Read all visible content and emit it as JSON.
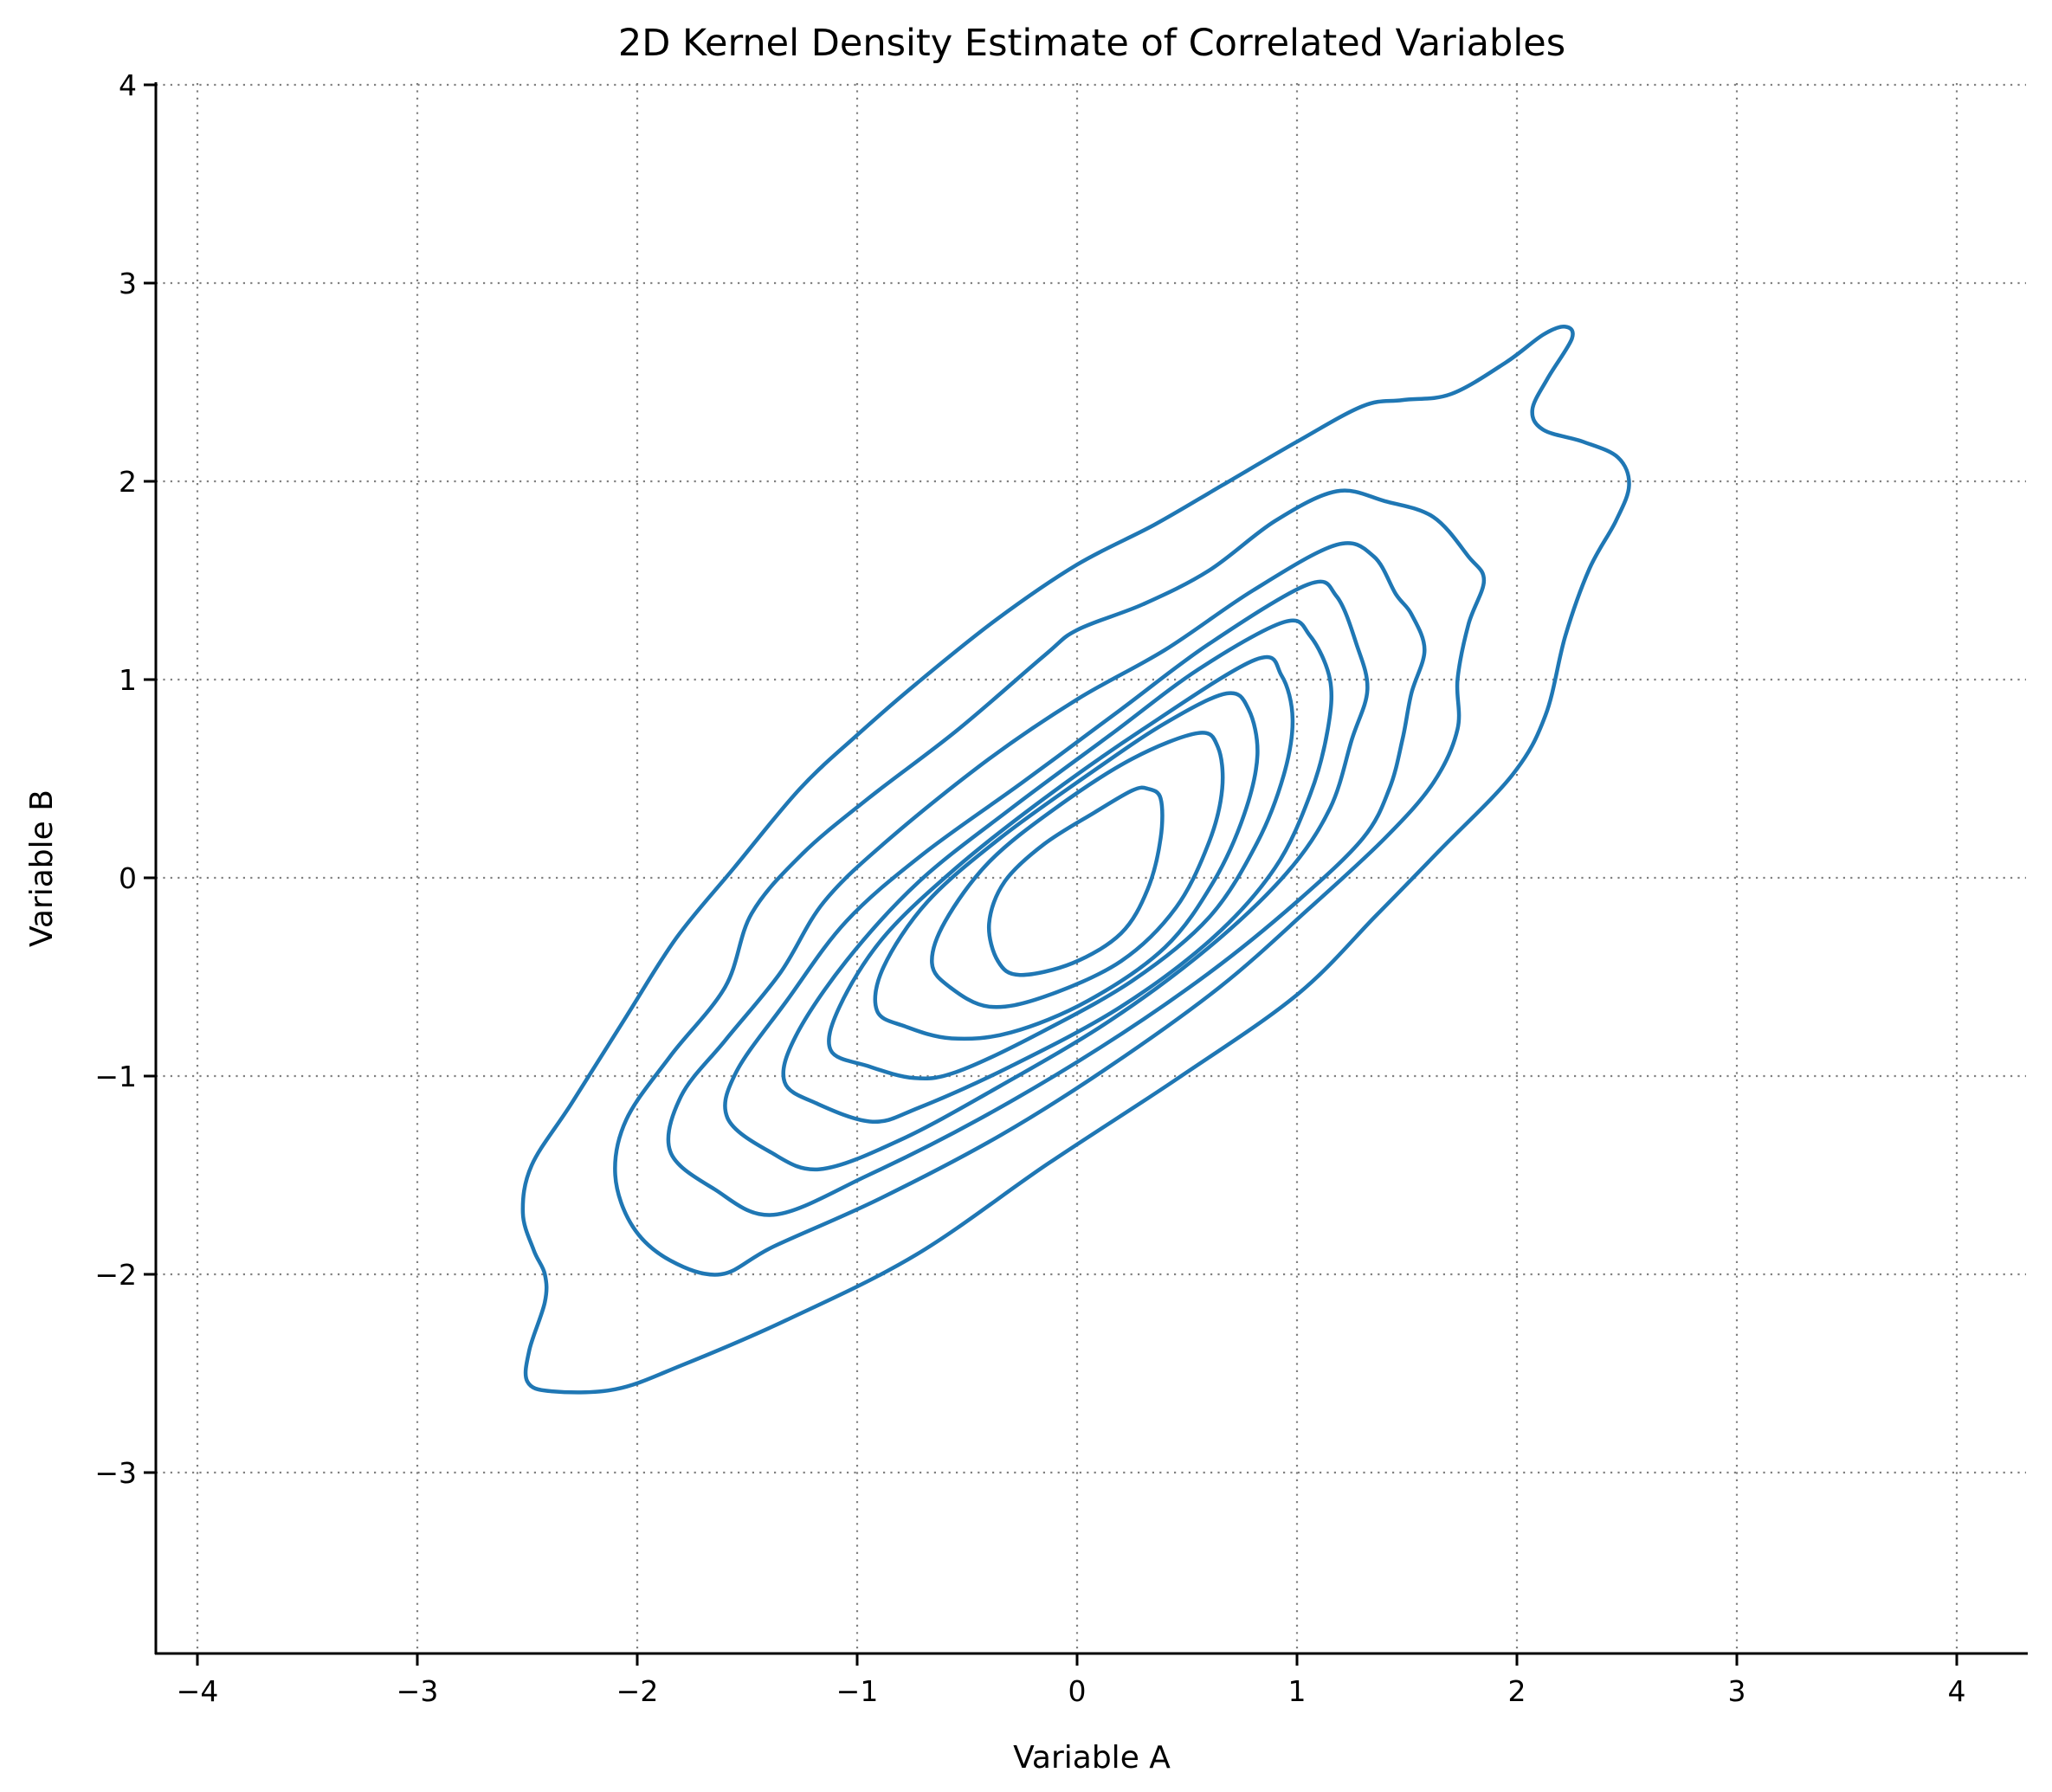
{
  "chart_data": {
    "type": "contour",
    "title": "2D Kernel Density Estimate of Correlated Variables",
    "xlabel": "Variable A",
    "ylabel": "Variable B",
    "xlim": [
      -4.2,
      4.32
    ],
    "ylim": [
      -3.9,
      4.0
    ],
    "xticks": [
      -4,
      -3,
      -2,
      -1,
      0,
      1,
      2,
      3,
      4
    ],
    "yticks": [
      -3,
      -2,
      -1,
      0,
      1,
      2,
      3,
      4
    ],
    "xtick_labels": [
      "−4",
      "−3",
      "−2",
      "−1",
      "0",
      "1",
      "2",
      "3",
      "4"
    ],
    "ytick_labels": [
      "−3",
      "−2",
      "−1",
      "0",
      "1",
      "2",
      "3",
      "4"
    ],
    "grid": {
      "on": true,
      "style": "dotted",
      "color": "#808080"
    },
    "spines": {
      "top": false,
      "right": false,
      "left": true,
      "bottom": true
    },
    "legend": null,
    "line_color": "#1f77b4",
    "n_levels": 9,
    "description": "Bivariate KDE of positively correlated variables, centered near (0, -0.05), principal axis along y ≈ x",
    "contours": [
      {
        "level": 1,
        "points": [
          [
            2.22,
            2.78
          ],
          [
            2.25,
            2.72
          ],
          [
            2.14,
            2.52
          ],
          [
            2.07,
            2.36
          ],
          [
            2.12,
            2.26
          ],
          [
            2.3,
            2.2
          ],
          [
            2.46,
            2.12
          ],
          [
            2.51,
            1.98
          ],
          [
            2.45,
            1.8
          ],
          [
            2.33,
            1.56
          ],
          [
            2.22,
            1.22
          ],
          [
            2.13,
            0.82
          ],
          [
            1.98,
            0.52
          ],
          [
            1.65,
            0.14
          ],
          [
            1.36,
            -0.19
          ],
          [
            1.0,
            -0.59
          ],
          [
            0.46,
            -1.01
          ],
          [
            -0.13,
            -1.44
          ],
          [
            -0.73,
            -1.9
          ],
          [
            -1.32,
            -2.23
          ],
          [
            -1.8,
            -2.46
          ],
          [
            -2.1,
            -2.58
          ],
          [
            -2.39,
            -2.59
          ],
          [
            -2.5,
            -2.54
          ],
          [
            -2.49,
            -2.38
          ],
          [
            -2.42,
            -2.14
          ],
          [
            -2.42,
            -2.0
          ],
          [
            -2.47,
            -1.88
          ],
          [
            -2.52,
            -1.69
          ],
          [
            -2.48,
            -1.45
          ],
          [
            -2.3,
            -1.14
          ],
          [
            -2.05,
            -0.7
          ],
          [
            -1.82,
            -0.3
          ],
          [
            -1.56,
            0.05
          ],
          [
            -1.26,
            0.45
          ],
          [
            -1.0,
            0.72
          ],
          [
            -0.73,
            0.98
          ],
          [
            -0.37,
            1.3
          ],
          [
            0.0,
            1.58
          ],
          [
            0.35,
            1.78
          ],
          [
            0.66,
            1.98
          ],
          [
            1.0,
            2.2
          ],
          [
            1.3,
            2.38
          ],
          [
            1.48,
            2.41
          ],
          [
            1.7,
            2.44
          ],
          [
            1.95,
            2.6
          ],
          [
            2.12,
            2.74
          ]
        ]
      },
      {
        "level": 2,
        "points": [
          [
            1.18,
            1.95
          ],
          [
            1.4,
            1.9
          ],
          [
            1.62,
            1.82
          ],
          [
            1.78,
            1.62
          ],
          [
            1.85,
            1.5
          ],
          [
            1.78,
            1.28
          ],
          [
            1.73,
            1.0
          ],
          [
            1.73,
            0.75
          ],
          [
            1.62,
            0.48
          ],
          [
            1.4,
            0.2
          ],
          [
            1.05,
            -0.16
          ],
          [
            0.65,
            -0.55
          ],
          [
            0.15,
            -0.95
          ],
          [
            -0.35,
            -1.3
          ],
          [
            -0.9,
            -1.62
          ],
          [
            -1.38,
            -1.86
          ],
          [
            -1.62,
            -2.0
          ],
          [
            -1.85,
            -1.93
          ],
          [
            -2.02,
            -1.76
          ],
          [
            -2.1,
            -1.5
          ],
          [
            -2.05,
            -1.22
          ],
          [
            -1.85,
            -0.9
          ],
          [
            -1.6,
            -0.55
          ],
          [
            -1.48,
            -0.18
          ],
          [
            -1.25,
            0.12
          ],
          [
            -0.95,
            0.4
          ],
          [
            -0.55,
            0.74
          ],
          [
            -0.15,
            1.12
          ],
          [
            0.0,
            1.25
          ],
          [
            0.3,
            1.38
          ],
          [
            0.6,
            1.55
          ],
          [
            0.9,
            1.8
          ]
        ]
      },
      {
        "level": 3,
        "points": [
          [
            1.18,
            1.68
          ],
          [
            1.35,
            1.62
          ],
          [
            1.45,
            1.43
          ],
          [
            1.52,
            1.33
          ],
          [
            1.58,
            1.15
          ],
          [
            1.52,
            0.93
          ],
          [
            1.48,
            0.7
          ],
          [
            1.42,
            0.45
          ],
          [
            1.3,
            0.2
          ],
          [
            1.0,
            -0.12
          ],
          [
            0.6,
            -0.48
          ],
          [
            0.1,
            -0.86
          ],
          [
            -0.45,
            -1.22
          ],
          [
            -0.95,
            -1.5
          ],
          [
            -1.38,
            -1.7
          ],
          [
            -1.65,
            -1.57
          ],
          [
            -1.85,
            -1.38
          ],
          [
            -1.8,
            -1.1
          ],
          [
            -1.6,
            -0.82
          ],
          [
            -1.35,
            -0.48
          ],
          [
            -1.15,
            -0.12
          ],
          [
            -0.85,
            0.2
          ],
          [
            -0.4,
            0.6
          ],
          [
            0.0,
            0.9
          ],
          [
            0.4,
            1.15
          ],
          [
            0.8,
            1.45
          ]
        ]
      },
      {
        "level": 4,
        "points": [
          [
            1.05,
            1.48
          ],
          [
            1.18,
            1.42
          ],
          [
            1.27,
            1.18
          ],
          [
            1.32,
            0.95
          ],
          [
            1.25,
            0.7
          ],
          [
            1.15,
            0.35
          ],
          [
            0.95,
            0.02
          ],
          [
            0.6,
            -0.35
          ],
          [
            0.15,
            -0.72
          ],
          [
            -0.35,
            -1.05
          ],
          [
            -0.8,
            -1.32
          ],
          [
            -1.17,
            -1.47
          ],
          [
            -1.4,
            -1.38
          ],
          [
            -1.59,
            -1.21
          ],
          [
            -1.55,
            -0.98
          ],
          [
            -1.32,
            -0.62
          ],
          [
            -1.05,
            -0.22
          ],
          [
            -0.7,
            0.12
          ],
          [
            -0.25,
            0.48
          ],
          [
            0.2,
            0.85
          ],
          [
            0.6,
            1.18
          ]
        ]
      },
      {
        "level": 5,
        "points": [
          [
            0.94,
            1.29
          ],
          [
            1.06,
            1.22
          ],
          [
            1.15,
            1.0
          ],
          [
            1.14,
            0.75
          ],
          [
            1.06,
            0.42
          ],
          [
            0.9,
            0.05
          ],
          [
            0.62,
            -0.3
          ],
          [
            0.2,
            -0.65
          ],
          [
            -0.3,
            -0.95
          ],
          [
            -0.72,
            -1.16
          ],
          [
            -0.93,
            -1.23
          ],
          [
            -1.18,
            -1.14
          ],
          [
            -1.33,
            -1.03
          ],
          [
            -1.28,
            -0.8
          ],
          [
            -1.05,
            -0.42
          ],
          [
            -0.72,
            -0.02
          ],
          [
            -0.3,
            0.35
          ],
          [
            0.15,
            0.72
          ],
          [
            0.55,
            1.05
          ]
        ]
      },
      {
        "level": 6,
        "points": [
          [
            0.81,
            1.1
          ],
          [
            0.93,
            1.02
          ],
          [
            0.98,
            0.8
          ],
          [
            0.94,
            0.52
          ],
          [
            0.82,
            0.18
          ],
          [
            0.6,
            -0.2
          ],
          [
            0.25,
            -0.52
          ],
          [
            -0.2,
            -0.8
          ],
          [
            -0.55,
            -0.98
          ],
          [
            -0.74,
            -1.01
          ],
          [
            -0.95,
            -0.95
          ],
          [
            -1.12,
            -0.87
          ],
          [
            -1.08,
            -0.65
          ],
          [
            -0.88,
            -0.3
          ],
          [
            -0.55,
            0.05
          ],
          [
            -0.15,
            0.4
          ],
          [
            0.3,
            0.75
          ]
        ]
      },
      {
        "level": 7,
        "points": [
          [
            0.68,
            0.93
          ],
          [
            0.78,
            0.85
          ],
          [
            0.82,
            0.62
          ],
          [
            0.76,
            0.32
          ],
          [
            0.62,
            -0.02
          ],
          [
            0.4,
            -0.35
          ],
          [
            0.05,
            -0.62
          ],
          [
            -0.3,
            -0.78
          ],
          [
            -0.57,
            -0.81
          ],
          [
            -0.78,
            -0.75
          ],
          [
            -0.91,
            -0.67
          ],
          [
            -0.88,
            -0.45
          ],
          [
            -0.68,
            -0.12
          ],
          [
            -0.35,
            0.2
          ],
          [
            0.05,
            0.52
          ],
          [
            0.4,
            0.78
          ]
        ]
      },
      {
        "level": 8,
        "points": [
          [
            0.55,
            0.73
          ],
          [
            0.64,
            0.66
          ],
          [
            0.66,
            0.45
          ],
          [
            0.6,
            0.18
          ],
          [
            0.45,
            -0.15
          ],
          [
            0.2,
            -0.42
          ],
          [
            -0.15,
            -0.6
          ],
          [
            -0.4,
            -0.65
          ],
          [
            -0.58,
            -0.55
          ],
          [
            -0.66,
            -0.43
          ],
          [
            -0.6,
            -0.22
          ],
          [
            -0.4,
            0.08
          ],
          [
            -0.1,
            0.35
          ],
          [
            0.25,
            0.6
          ]
        ]
      },
      {
        "level": 9,
        "points": [
          [
            0.32,
            0.45
          ],
          [
            0.38,
            0.4
          ],
          [
            0.38,
            0.2
          ],
          [
            0.32,
            -0.06
          ],
          [
            0.2,
            -0.28
          ],
          [
            -0.02,
            -0.43
          ],
          [
            -0.26,
            -0.49
          ],
          [
            -0.36,
            -0.42
          ],
          [
            -0.4,
            -0.23
          ],
          [
            -0.33,
            -0.02
          ],
          [
            -0.15,
            0.17
          ],
          [
            0.08,
            0.33
          ],
          [
            0.25,
            0.44
          ]
        ]
      }
    ]
  },
  "plot": {
    "title": "2D Kernel Density Estimate of Correlated Variables",
    "xlabel": "Variable A",
    "ylabel": "Variable B"
  }
}
